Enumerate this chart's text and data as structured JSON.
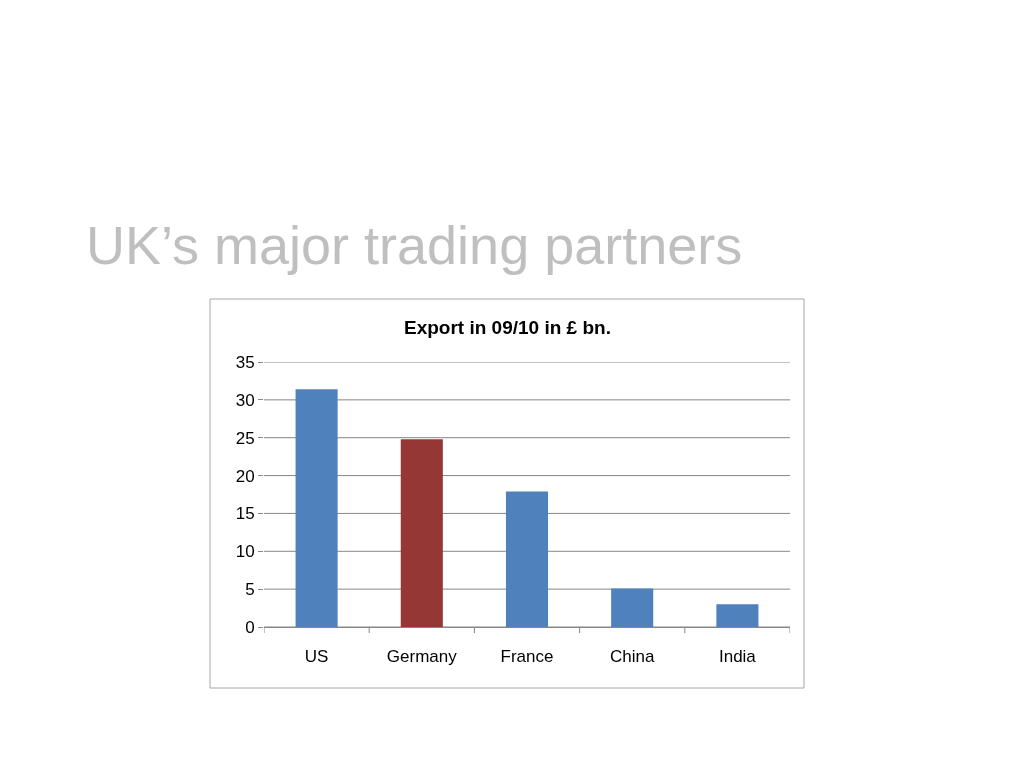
{
  "chart_data": {
    "type": "bar",
    "title": "UK’s major trading partners",
    "subtitle": "Export in 09/10 in £ bn.",
    "categories": [
      "US",
      "Germany",
      "France",
      "China",
      "India"
    ],
    "values": [
      31.4,
      24.8,
      17.9,
      5.1,
      3.0
    ],
    "colors": [
      "#4f81bd",
      "#953735",
      "#4f81bd",
      "#4f81bd",
      "#4f81bd"
    ],
    "ylim": [
      0,
      35
    ],
    "yticks": [
      0,
      5,
      10,
      15,
      20,
      25,
      30,
      35
    ],
    "grid": "y"
  }
}
